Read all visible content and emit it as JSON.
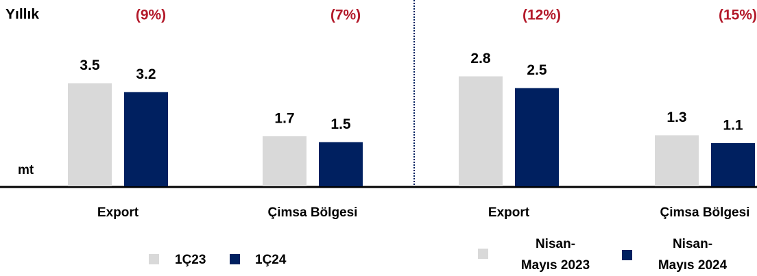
{
  "chart_data": [
    {
      "type": "bar",
      "title": "Yıllık",
      "y_label": "mt",
      "categories": [
        "Export",
        "Çimsa Bölgesi"
      ],
      "change_labels": [
        "(9%)",
        "(7%)"
      ],
      "series": [
        {
          "name": "1Ç23",
          "color": "#d9d9d9",
          "values": [
            3.5,
            1.7
          ]
        },
        {
          "name": "1Ç24",
          "color": "#002060",
          "values": [
            3.2,
            1.5
          ]
        }
      ],
      "ylim": [
        0,
        4
      ]
    },
    {
      "type": "bar",
      "categories": [
        "Export",
        "Çimsa Bölgesi"
      ],
      "change_labels": [
        "(12%)",
        "(15%)"
      ],
      "series": [
        {
          "name": "Nisan-\nMayıs 2023",
          "color": "#d9d9d9",
          "values": [
            2.8,
            1.3
          ]
        },
        {
          "name": "Nisan-\nMayıs 2024",
          "color": "#002060",
          "values": [
            2.5,
            1.1
          ]
        }
      ],
      "ylim": [
        0,
        3
      ]
    }
  ]
}
